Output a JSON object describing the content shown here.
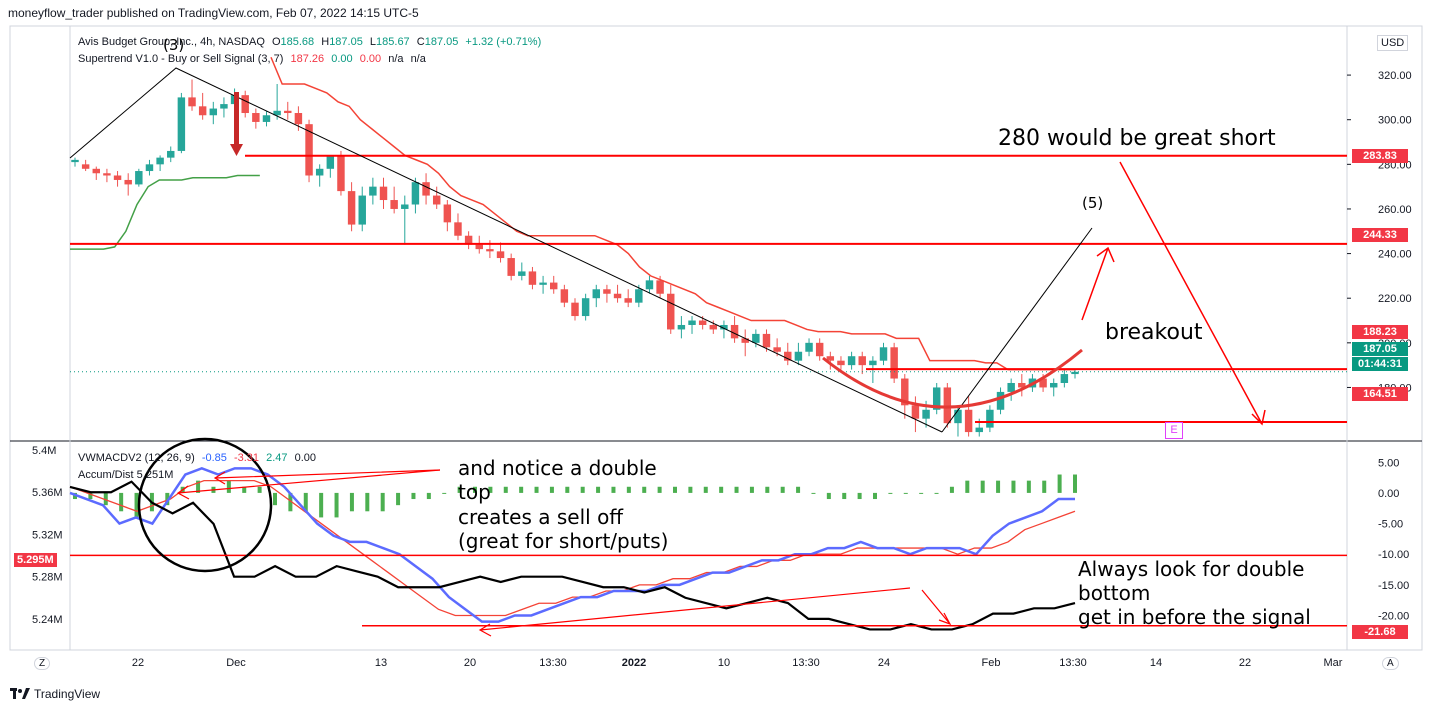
{
  "published": "moneyflow_trader published on TradingView.com, Feb 07, 2022 14:15 UTC-5",
  "footer": {
    "brand": "TradingView",
    "logo_icon": "tradingview-logo-icon"
  },
  "colors": {
    "up": "#26a69a",
    "down": "#ef5350",
    "supertrend_up": "#43a047",
    "supertrend_down": "#f44336",
    "annotation": "#ff0000",
    "vwmacd_line": "#2962ff",
    "signal": "#f44336",
    "accum": "#000000",
    "hist_pos": "#4caf50"
  },
  "header": {
    "symbol": "Avis Budget Group, Inc., 4h, NASDAQ",
    "o_label": "O",
    "o_value": "185.68",
    "h_label": "H",
    "h_value": "187.05",
    "l_label": "L",
    "l_value": "185.67",
    "c_label": "C",
    "c_value": "187.05",
    "change": "+1.32 (+0.71%)",
    "indicator": "Supertrend V1.0 - Buy or Sell Signal (3, 7)",
    "ind_v1": "187.26",
    "ind_v2": "0.00",
    "ind_v3": "0.00",
    "ind_v4": "n/a",
    "ind_v5": "n/a"
  },
  "lower_header": {
    "name": "VWMACDV2 (12, 26, 9)",
    "v1": "-0.85",
    "v2": "-3.31",
    "v3": "2.47",
    "v4": "0.00",
    "accum": "Accum/Dist 5.251M"
  },
  "currency": "USD",
  "corners": {
    "left": "Z",
    "right": "A"
  },
  "price_badges": [
    {
      "label": "283.83",
      "color": "#f23645"
    },
    {
      "label": "244.33",
      "color": "#f23645"
    },
    {
      "label": "188.23",
      "color": "#f23645"
    },
    {
      "label": "187.05",
      "color": "#089981"
    },
    {
      "label": "01:44:31",
      "color": "#089981"
    },
    {
      "label": "164.51",
      "color": "#f23645"
    }
  ],
  "lower_badges": [
    {
      "label": "5.295M",
      "color": "#f23645"
    },
    {
      "label": "-21.68",
      "color": "#f23645"
    }
  ],
  "annotations": {
    "short_text": "280 would be great short",
    "wave5": "(5)",
    "wave3": "(3)",
    "breakout": "breakout",
    "earnings": "E",
    "double_top_1": "and notice a double",
    "double_top_2": "top",
    "double_top_3": "creates a sell off",
    "double_top_4": "(great for short/puts)",
    "double_bottom_1": "Always look for double",
    "double_bottom_2": "bottom",
    "double_bottom_3": "get in before the signal"
  },
  "chart_data": [
    {
      "type": "candlestick",
      "title": "Avis Budget Group, Inc., 4h, NASDAQ",
      "ylabel": "USD",
      "ylim": [
        156,
        342
      ],
      "y_ticks": [
        180,
        200,
        220,
        240,
        260,
        280,
        300,
        320
      ],
      "x_ticks": [
        "22",
        "Dec",
        "13",
        "20",
        "13:30",
        "2022",
        "10",
        "13:30",
        "24",
        "Feb",
        "13:30",
        "14",
        "22",
        "Mar"
      ],
      "horizontal_levels": [
        283.83,
        244.33,
        188.23,
        164.51
      ],
      "last_price": 187.05,
      "candles_ohlc": [
        [
          281,
          283,
          279,
          282
        ],
        [
          280,
          282,
          277,
          278
        ],
        [
          278,
          279,
          273,
          276
        ],
        [
          276,
          278,
          272,
          275
        ],
        [
          275,
          277,
          270,
          273
        ],
        [
          273,
          276,
          266,
          271
        ],
        [
          271,
          278,
          270,
          277
        ],
        [
          277,
          282,
          275,
          280
        ],
        [
          280,
          284,
          277,
          283
        ],
        [
          283,
          288,
          281,
          286
        ],
        [
          286,
          312,
          285,
          310
        ],
        [
          310,
          318,
          304,
          306
        ],
        [
          306,
          312,
          300,
          302
        ],
        [
          302,
          308,
          298,
          305
        ],
        [
          305,
          310,
          301,
          307
        ],
        [
          307,
          314,
          305,
          311
        ],
        [
          311,
          313,
          301,
          303
        ],
        [
          303,
          305,
          296,
          299
        ],
        [
          299,
          304,
          297,
          302
        ],
        [
          302,
          316,
          300,
          304
        ],
        [
          304,
          308,
          300,
          303
        ],
        [
          303,
          306,
          295,
          298
        ],
        [
          298,
          300,
          272,
          275
        ],
        [
          275,
          280,
          270,
          278
        ],
        [
          278,
          282,
          274,
          284
        ],
        [
          284,
          286,
          266,
          268
        ],
        [
          268,
          272,
          250,
          253
        ],
        [
          253,
          270,
          250,
          266
        ],
        [
          266,
          274,
          262,
          270
        ],
        [
          270,
          274,
          260,
          264
        ],
        [
          264,
          270,
          258,
          260
        ],
        [
          260,
          266,
          244,
          262
        ],
        [
          262,
          274,
          258,
          272
        ],
        [
          272,
          276,
          262,
          266
        ],
        [
          266,
          270,
          260,
          262
        ],
        [
          262,
          264,
          250,
          254
        ],
        [
          254,
          258,
          246,
          248
        ],
        [
          248,
          250,
          242,
          244
        ],
        [
          244,
          248,
          240,
          242
        ],
        [
          242,
          246,
          238,
          241
        ],
        [
          241,
          245,
          236,
          238
        ],
        [
          238,
          240,
          228,
          230
        ],
        [
          230,
          236,
          228,
          232
        ],
        [
          232,
          234,
          224,
          226
        ],
        [
          226,
          230,
          222,
          227
        ],
        [
          227,
          230,
          222,
          224
        ],
        [
          224,
          226,
          216,
          218
        ],
        [
          218,
          220,
          210,
          212
        ],
        [
          212,
          222,
          210,
          220
        ],
        [
          220,
          226,
          216,
          224
        ],
        [
          224,
          226,
          218,
          222
        ],
        [
          222,
          226,
          218,
          220
        ],
        [
          220,
          224,
          216,
          218
        ],
        [
          218,
          226,
          216,
          224
        ],
        [
          224,
          230,
          222,
          228
        ],
        [
          228,
          230,
          220,
          222
        ],
        [
          222,
          226,
          204,
          206
        ],
        [
          206,
          212,
          202,
          208
        ],
        [
          208,
          212,
          204,
          210
        ],
        [
          210,
          212,
          206,
          208
        ],
        [
          208,
          210,
          204,
          206
        ],
        [
          206,
          210,
          202,
          208
        ],
        [
          208,
          212,
          200,
          202
        ],
        [
          202,
          206,
          194,
          200
        ],
        [
          200,
          206,
          198,
          204
        ],
        [
          204,
          206,
          196,
          198
        ],
        [
          198,
          202,
          194,
          196
        ],
        [
          196,
          200,
          190,
          192
        ],
        [
          192,
          200,
          190,
          196
        ],
        [
          196,
          202,
          194,
          200
        ],
        [
          200,
          202,
          192,
          194
        ],
        [
          194,
          196,
          188,
          192
        ],
        [
          192,
          194,
          188,
          190
        ],
        [
          190,
          196,
          188,
          194
        ],
        [
          194,
          196,
          186,
          190
        ],
        [
          190,
          194,
          182,
          192
        ],
        [
          192,
          200,
          190,
          198
        ],
        [
          198,
          200,
          182,
          184
        ],
        [
          184,
          186,
          166,
          172
        ],
        [
          172,
          176,
          160,
          166
        ],
        [
          166,
          174,
          162,
          170
        ],
        [
          170,
          182,
          168,
          180
        ],
        [
          180,
          182,
          162,
          164
        ],
        [
          164,
          172,
          158,
          170
        ],
        [
          170,
          176,
          158,
          160
        ],
        [
          160,
          166,
          158,
          162
        ],
        [
          162,
          172,
          160,
          170
        ],
        [
          170,
          180,
          168,
          178
        ],
        [
          178,
          184,
          174,
          182
        ],
        [
          182,
          186,
          176,
          180
        ],
        [
          180,
          186,
          178,
          184
        ],
        [
          184,
          186,
          178,
          180
        ],
        [
          180,
          184,
          176,
          182
        ],
        [
          182,
          188,
          180,
          186
        ],
        [
          186,
          188,
          184,
          187
        ]
      ],
      "supertrend": [
        242,
        242,
        242,
        242,
        243,
        250,
        262,
        270,
        273,
        273,
        273,
        274,
        274,
        274,
        274,
        275,
        275,
        275,
        328,
        316,
        316,
        316,
        314,
        312,
        308,
        306,
        300,
        296,
        292,
        288,
        284,
        282,
        280,
        276,
        270,
        266,
        264,
        262,
        258,
        254,
        250,
        248,
        248,
        248,
        248,
        248,
        248,
        248,
        246,
        244,
        240,
        234,
        230,
        228,
        226,
        224,
        222,
        218,
        216,
        214,
        212,
        210,
        210,
        210,
        210,
        208,
        206,
        205,
        205,
        205,
        204,
        204,
        204,
        204,
        202,
        202,
        202,
        192,
        192,
        192,
        192,
        192,
        191,
        191,
        188,
        188,
        188,
        188,
        188,
        188,
        188
      ]
    },
    {
      "type": "line",
      "title": "VWMACDV2 (12, 26, 9)",
      "ylim_right": [
        -24,
        7
      ],
      "ylim_left": [
        5.22,
        5.4
      ],
      "right_ticks": [
        5.0,
        0.0,
        -5.0,
        -10.0,
        -15.0,
        -20.0
      ],
      "left_ticks": [
        "5.4M",
        "5.36M",
        "5.32M",
        "5.28M",
        "5.24M"
      ],
      "horizontal_levels_right": [
        -10.2,
        -21.68
      ],
      "series": [
        {
          "name": "VWMACD",
          "values": [
            0,
            -1,
            -2,
            -5,
            -4,
            -5,
            -1,
            3,
            4,
            3,
            4,
            4,
            3,
            1,
            -2,
            -5,
            -7,
            -8,
            -8,
            -9,
            -10,
            -12,
            -14,
            -17,
            -19,
            -21,
            -21,
            -20,
            -20,
            -19,
            -18,
            -17,
            -17,
            -16,
            -16,
            -16,
            -15,
            -15,
            -14,
            -13,
            -13,
            -12,
            -11,
            -11,
            -10,
            -10,
            -9,
            -9,
            -8,
            -9,
            -9,
            -10,
            -9,
            -9,
            -9,
            -10,
            -7,
            -5,
            -4,
            -3,
            -1,
            -1
          ]
        },
        {
          "name": "Signal",
          "values": [
            1,
            0,
            -1,
            -2,
            -3,
            -2,
            -1,
            1,
            2,
            2,
            2,
            2,
            1,
            -1,
            -3,
            -5,
            -7,
            -9,
            -11,
            -13,
            -15,
            -17,
            -19,
            -20,
            -20,
            -20,
            -20,
            -19,
            -18,
            -18,
            -17,
            -17,
            -16,
            -16,
            -15,
            -15,
            -14,
            -14,
            -13,
            -13,
            -12,
            -12,
            -11,
            -11,
            -10,
            -10,
            -10,
            -9,
            -9,
            -9,
            -9,
            -9,
            -9,
            -10,
            -9,
            -9,
            -8,
            -6,
            -5,
            -4,
            -3
          ]
        },
        {
          "name": "Accum/Dist",
          "values": [
            5.365,
            5.36,
            5.36,
            5.37,
            5.35,
            5.34,
            5.35,
            5.33,
            5.28,
            5.28,
            5.29,
            5.28,
            5.28,
            5.29,
            5.285,
            5.28,
            5.27,
            5.27,
            5.27,
            5.275,
            5.28,
            5.275,
            5.28,
            5.28,
            5.28,
            5.275,
            5.27,
            5.27,
            5.265,
            5.27,
            5.26,
            5.255,
            5.25,
            5.255,
            5.26,
            5.255,
            5.24,
            5.24,
            5.235,
            5.23,
            5.23,
            5.235,
            5.23,
            5.23,
            5.235,
            5.245,
            5.245,
            5.25,
            5.25,
            5.255
          ]
        },
        {
          "name": "Histogram",
          "values": [
            -1,
            -1,
            -2,
            -3,
            -4,
            -3,
            -2,
            1,
            2,
            1,
            2,
            1,
            1,
            -2,
            -3,
            -3,
            -4,
            -4,
            -3,
            -3,
            -3,
            -2,
            -1,
            -1,
            0,
            1,
            1,
            1,
            1,
            1,
            1,
            1,
            1,
            1,
            1,
            1,
            1,
            1,
            1,
            1,
            1,
            1,
            1,
            1,
            1,
            1,
            1,
            1,
            0,
            -1,
            -1,
            -1,
            -1,
            0,
            0,
            0,
            0,
            1,
            2,
            2,
            2,
            2,
            2,
            2,
            3,
            3
          ]
        }
      ]
    }
  ]
}
